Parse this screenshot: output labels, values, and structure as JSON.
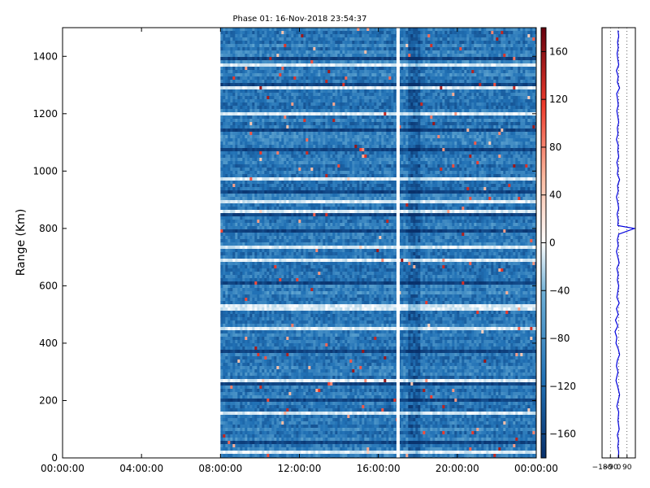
{
  "chart_data": [
    {
      "type": "heatmap",
      "title": "Phase 01: 16-Nov-2018 23:54:37",
      "xlabel": "",
      "ylabel": "Range (Km)",
      "x_ticks": [
        "00:00:00",
        "04:00:00",
        "08:00:00",
        "12:00:00",
        "16:00:00",
        "20:00:00",
        "00:00:00"
      ],
      "x_range_hours": [
        0,
        24
      ],
      "data_start_hour": 8,
      "gap_hour": 17.0,
      "ylim": [
        0,
        1500
      ],
      "y_ticks": [
        0,
        200,
        400,
        600,
        800,
        1000,
        1200,
        1400
      ],
      "colorbar": {
        "vmin": -180,
        "vmax": 180,
        "ticks": [
          160,
          120,
          80,
          40,
          0,
          -40,
          -80,
          -120,
          -160
        ],
        "colormap": [
          "#08306b",
          "#2171b5",
          "#6baed6",
          "#ffffff",
          "#fcbba1",
          "#ef3b2c",
          "#67000d"
        ]
      },
      "bright_rows_km": [
        25,
        160,
        270,
        455,
        530,
        690,
        735,
        800,
        860,
        895,
        975,
        1200,
        1300,
        1370
      ],
      "dark_rows_km": [
        60,
        210,
        265,
        380,
        620,
        800,
        850,
        930,
        1080,
        1150,
        1310,
        1400
      ],
      "grid": false
    },
    {
      "type": "line",
      "title": "",
      "xlabel": "",
      "ylabel": "",
      "xlim": [
        -180,
        180
      ],
      "x_ticks": [
        "−180",
        "−90",
        "0",
        "90"
      ],
      "ylim": [
        0,
        1500
      ],
      "series": [
        {
          "color": "#0000dd",
          "points": [
            [
              -5,
              0
            ],
            [
              0,
              20
            ],
            [
              -10,
              40
            ],
            [
              -2,
              60
            ],
            [
              -15,
              80
            ],
            [
              5,
              100
            ],
            [
              -8,
              130
            ],
            [
              0,
              160
            ],
            [
              -20,
              180
            ],
            [
              -5,
              200
            ],
            [
              10,
              220
            ],
            [
              -12,
              250
            ],
            [
              -30,
              270
            ],
            [
              -8,
              300
            ],
            [
              -25,
              320
            ],
            [
              -15,
              340
            ],
            [
              10,
              360
            ],
            [
              -5,
              380
            ],
            [
              -30,
              400
            ],
            [
              -20,
              420
            ],
            [
              -40,
              440
            ],
            [
              -10,
              460
            ],
            [
              -35,
              480
            ],
            [
              -5,
              500
            ],
            [
              -25,
              520
            ],
            [
              5,
              540
            ],
            [
              -20,
              560
            ],
            [
              -10,
              580
            ],
            [
              0,
              600
            ],
            [
              -15,
              620
            ],
            [
              -5,
              640
            ],
            [
              -20,
              660
            ],
            [
              5,
              680
            ],
            [
              -10,
              700
            ],
            [
              -25,
              720
            ],
            [
              -5,
              740
            ],
            [
              -15,
              760
            ],
            [
              0,
              780
            ],
            [
              170,
              800
            ],
            [
              -10,
              810
            ],
            [
              -5,
              830
            ],
            [
              -18,
              850
            ],
            [
              0,
              870
            ],
            [
              -10,
              890
            ],
            [
              -25,
              910
            ],
            [
              -5,
              930
            ],
            [
              -12,
              950
            ],
            [
              10,
              970
            ],
            [
              -15,
              990
            ],
            [
              -5,
              1010
            ],
            [
              -20,
              1030
            ],
            [
              0,
              1050
            ],
            [
              -10,
              1070
            ],
            [
              -5,
              1090
            ],
            [
              -25,
              1110
            ],
            [
              -8,
              1130
            ],
            [
              -15,
              1150
            ],
            [
              0,
              1170
            ],
            [
              -10,
              1190
            ],
            [
              -20,
              1210
            ],
            [
              -5,
              1230
            ],
            [
              -12,
              1250
            ],
            [
              -22,
              1270
            ],
            [
              10,
              1290
            ],
            [
              -15,
              1310
            ],
            [
              -5,
              1330
            ],
            [
              -25,
              1350
            ],
            [
              0,
              1370
            ],
            [
              -10,
              1390
            ],
            [
              -18,
              1410
            ],
            [
              -5,
              1430
            ],
            [
              -12,
              1450
            ],
            [
              0,
              1470
            ],
            [
              -8,
              1490
            ]
          ]
        }
      ],
      "grid": true
    }
  ]
}
